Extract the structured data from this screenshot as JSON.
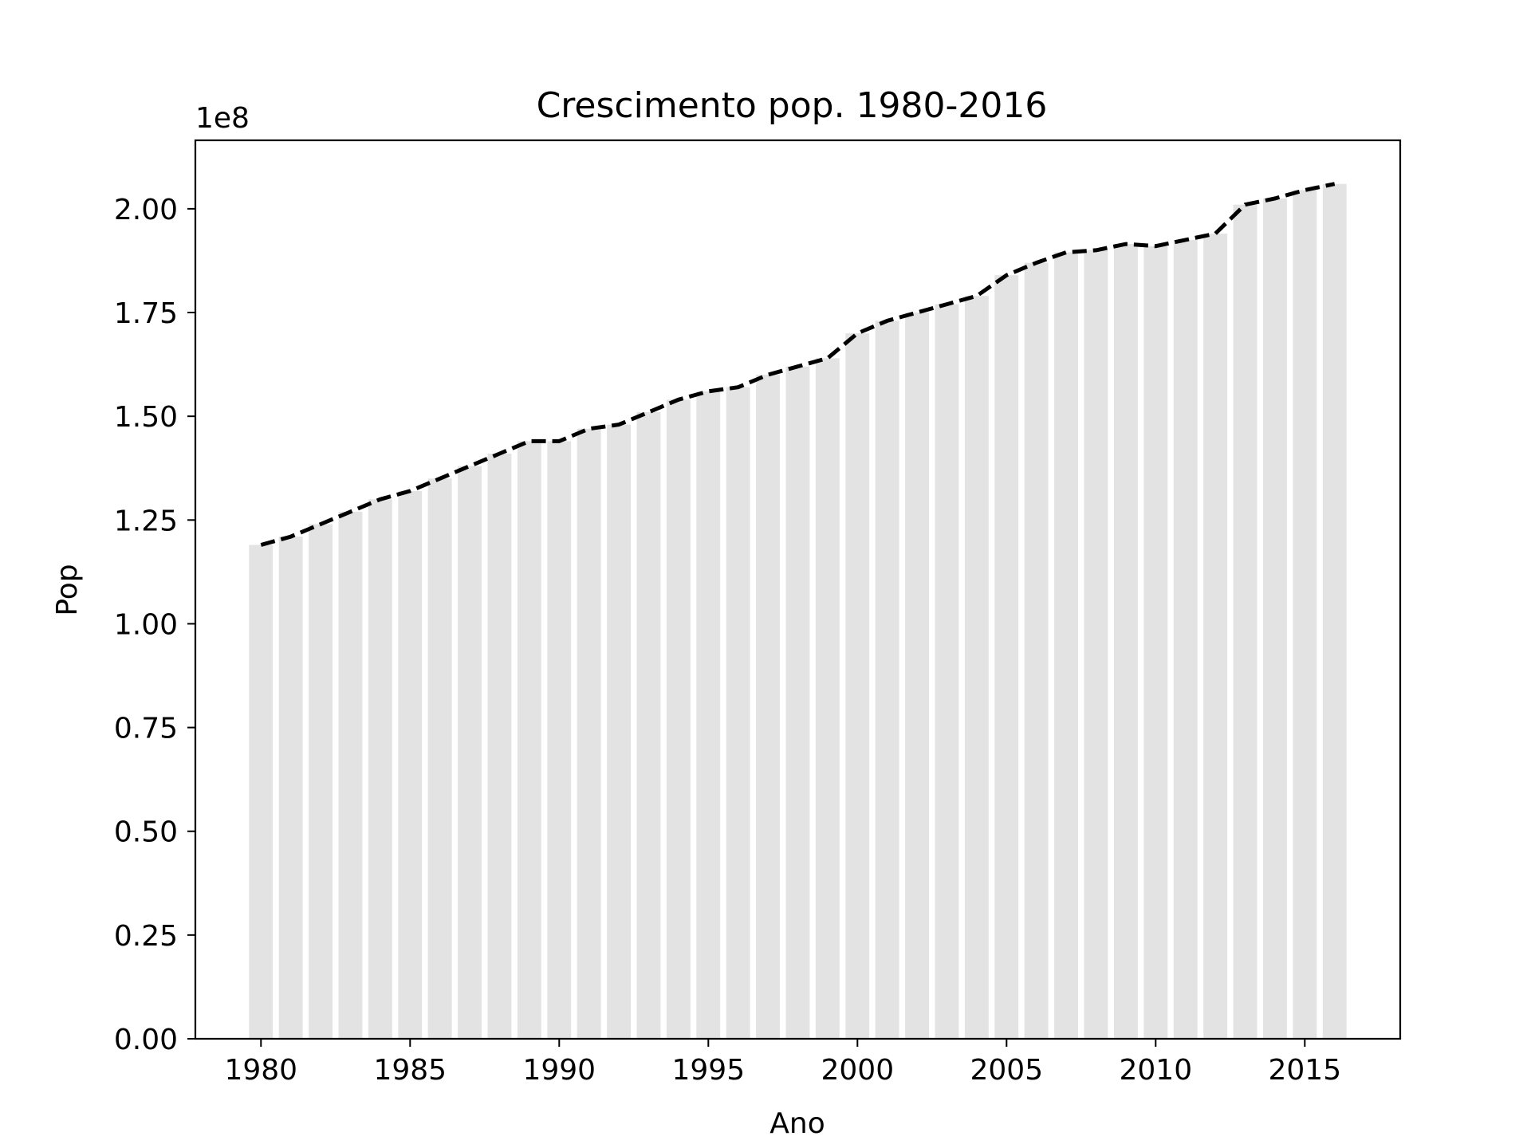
{
  "chart_data": {
    "type": "bar",
    "title": "Crescimento pop. 1980-2016",
    "xlabel": "Ano",
    "ylabel": "Pop",
    "y_offset_label": "1e8",
    "xlim": [
      1977.8,
      2018.2
    ],
    "ylim": [
      0,
      2.165
    ],
    "xticks": [
      1980,
      1985,
      1990,
      1995,
      2000,
      2005,
      2010,
      2015
    ],
    "yticks": [
      "0.00",
      "0.25",
      "0.50",
      "0.75",
      "1.00",
      "1.25",
      "1.50",
      "1.75",
      "2.00"
    ],
    "categories": [
      1980,
      1981,
      1982,
      1983,
      1984,
      1985,
      1986,
      1987,
      1988,
      1989,
      1990,
      1991,
      1992,
      1993,
      1994,
      1995,
      1996,
      1997,
      1998,
      1999,
      2000,
      2001,
      2002,
      2003,
      2004,
      2005,
      2006,
      2007,
      2008,
      2009,
      2010,
      2011,
      2012,
      2013,
      2014,
      2015,
      2016
    ],
    "series": [
      {
        "kind": "bar",
        "color": "#e3e3e3",
        "values": [
          1.19,
          1.21,
          1.24,
          1.27,
          1.3,
          1.32,
          1.35,
          1.38,
          1.41,
          1.44,
          1.44,
          1.47,
          1.48,
          1.51,
          1.54,
          1.56,
          1.57,
          1.6,
          1.62,
          1.64,
          1.7,
          1.73,
          1.75,
          1.77,
          1.79,
          1.84,
          1.87,
          1.895,
          1.9,
          1.915,
          1.91,
          1.925,
          1.94,
          2.01,
          2.025,
          2.045,
          2.06
        ]
      },
      {
        "kind": "line",
        "color": "#000000",
        "style": "dashed",
        "values": [
          1.19,
          1.21,
          1.24,
          1.27,
          1.3,
          1.32,
          1.35,
          1.38,
          1.41,
          1.44,
          1.44,
          1.47,
          1.48,
          1.51,
          1.54,
          1.56,
          1.57,
          1.6,
          1.62,
          1.64,
          1.7,
          1.73,
          1.75,
          1.77,
          1.79,
          1.84,
          1.87,
          1.895,
          1.9,
          1.915,
          1.91,
          1.925,
          1.94,
          2.01,
          2.025,
          2.045,
          2.06
        ]
      }
    ],
    "grid": false,
    "legend": "none"
  }
}
